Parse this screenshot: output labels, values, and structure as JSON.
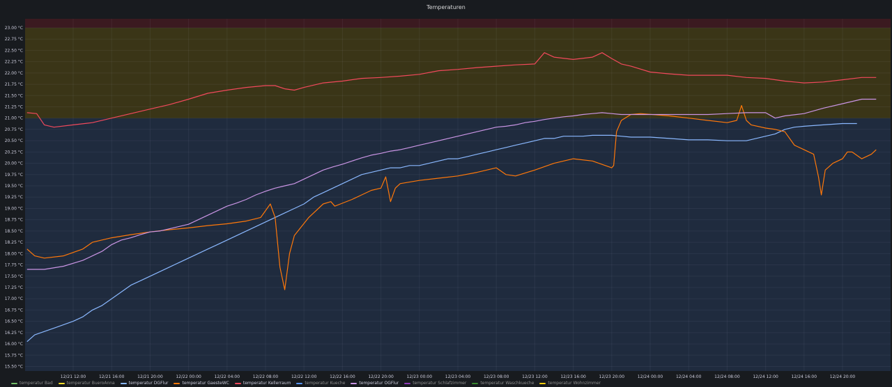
{
  "panel": {
    "title": "Temperaturen"
  },
  "chart_data": {
    "type": "line",
    "title": "Temperaturen",
    "xlabel": "",
    "ylabel": "",
    "ylim": [
      15.4,
      23.2
    ],
    "y_ticks": [
      "23.00 °C",
      "22.75 °C",
      "22.50 °C",
      "22.25 °C",
      "22.00 °C",
      "21.75 °C",
      "21.50 °C",
      "21.25 °C",
      "21.00 °C",
      "20.75 °C",
      "20.50 °C",
      "20.25 °C",
      "20.00 °C",
      "19.75 °C",
      "19.50 °C",
      "19.25 °C",
      "19.00 °C",
      "18.75 °C",
      "18.50 °C",
      "18.25 °C",
      "18.00 °C",
      "17.75 °C",
      "17.50 °C",
      "17.25 °C",
      "17.00 °C",
      "16.75 °C",
      "16.50 °C",
      "16.25 °C",
      "16.00 °C",
      "15.75 °C",
      "15.50 °C"
    ],
    "y_tick_values": [
      23,
      22.75,
      22.5,
      22.25,
      22,
      21.75,
      21.5,
      21.25,
      21,
      20.75,
      20.5,
      20.25,
      20,
      19.75,
      19.5,
      19.25,
      19,
      18.75,
      18.5,
      18.25,
      18,
      17.75,
      17.5,
      17.25,
      17,
      16.75,
      16.5,
      16.25,
      16,
      15.75,
      15.5
    ],
    "x_range_hours": [
      -5,
      85
    ],
    "x_ticks": [
      "12/21 12:00",
      "12/21 16:00",
      "12/21 20:00",
      "12/22 00:00",
      "12/22 04:00",
      "12/22 08:00",
      "12/22 12:00",
      "12/22 16:00",
      "12/22 20:00",
      "12/23 00:00",
      "12/23 04:00",
      "12/23 08:00",
      "12/23 12:00",
      "12/23 16:00",
      "12/23 20:00",
      "12/24 00:00",
      "12/24 04:00",
      "12/24 08:00",
      "12/24 12:00",
      "12/24 16:00",
      "12/24 20:00"
    ],
    "x_tick_hours": [
      0,
      4,
      8,
      12,
      16,
      20,
      24,
      28,
      32,
      36,
      40,
      44,
      48,
      52,
      56,
      60,
      64,
      68,
      72,
      76,
      80
    ],
    "thresholds": [
      {
        "from": 15.4,
        "to": 21.0,
        "color": "#1f2b3e"
      },
      {
        "from": 21.0,
        "to": 23.0,
        "color": "#3a3517"
      },
      {
        "from": 23.0,
        "to": 23.2,
        "color": "#3b1a20"
      }
    ],
    "grid": true,
    "legend_position": "bottom",
    "series": [
      {
        "name": "temperatur Bad",
        "color": "#73bf69",
        "visible": false,
        "points": []
      },
      {
        "name": "temperatur BueroAnna",
        "color": "#fade2a",
        "visible": false,
        "points": []
      },
      {
        "name": "temperatur DGFlur",
        "color": "#8ab8ff",
        "visible": true,
        "points": [
          [
            -4.8,
            16.05
          ],
          [
            -4,
            16.2
          ],
          [
            -2,
            16.35
          ],
          [
            0,
            16.5
          ],
          [
            1,
            16.6
          ],
          [
            2,
            16.75
          ],
          [
            3,
            16.85
          ],
          [
            4,
            17.0
          ],
          [
            5,
            17.15
          ],
          [
            6,
            17.3
          ],
          [
            7,
            17.4
          ],
          [
            8,
            17.5
          ],
          [
            9,
            17.6
          ],
          [
            10,
            17.7
          ],
          [
            11,
            17.8
          ],
          [
            12,
            17.9
          ],
          [
            13,
            18.0
          ],
          [
            14,
            18.1
          ],
          [
            15,
            18.2
          ],
          [
            16,
            18.3
          ],
          [
            17,
            18.4
          ],
          [
            18,
            18.5
          ],
          [
            19,
            18.6
          ],
          [
            20,
            18.7
          ],
          [
            21,
            18.8
          ],
          [
            22,
            18.9
          ],
          [
            23,
            19.0
          ],
          [
            24,
            19.1
          ],
          [
            25,
            19.25
          ],
          [
            26,
            19.35
          ],
          [
            27,
            19.45
          ],
          [
            28,
            19.55
          ],
          [
            29,
            19.65
          ],
          [
            30,
            19.75
          ],
          [
            31,
            19.8
          ],
          [
            32,
            19.85
          ],
          [
            33,
            19.9
          ],
          [
            34,
            19.9
          ],
          [
            35,
            19.95
          ],
          [
            36,
            19.95
          ],
          [
            37,
            20.0
          ],
          [
            38,
            20.05
          ],
          [
            39,
            20.1
          ],
          [
            40,
            20.1
          ],
          [
            41,
            20.15
          ],
          [
            42,
            20.2
          ],
          [
            43,
            20.25
          ],
          [
            44,
            20.3
          ],
          [
            45,
            20.35
          ],
          [
            46,
            20.4
          ],
          [
            47,
            20.45
          ],
          [
            48,
            20.5
          ],
          [
            49,
            20.55
          ],
          [
            50,
            20.55
          ],
          [
            51,
            20.6
          ],
          [
            52,
            20.6
          ],
          [
            53,
            20.6
          ],
          [
            54,
            20.62
          ],
          [
            55,
            20.62
          ],
          [
            56,
            20.62
          ],
          [
            57,
            20.6
          ],
          [
            58,
            20.58
          ],
          [
            60,
            20.58
          ],
          [
            62,
            20.55
          ],
          [
            64,
            20.52
          ],
          [
            66,
            20.52
          ],
          [
            68,
            20.5
          ],
          [
            70,
            20.5
          ],
          [
            71,
            20.55
          ],
          [
            72,
            20.6
          ],
          [
            73,
            20.65
          ],
          [
            74,
            20.75
          ],
          [
            75,
            20.8
          ],
          [
            76,
            20.82
          ],
          [
            78,
            20.85
          ],
          [
            80,
            20.88
          ],
          [
            81.5,
            20.88
          ]
        ]
      },
      {
        "name": "temperatur GaesteWC",
        "color": "#ff780a",
        "visible": true,
        "points": [
          [
            -4.8,
            18.1
          ],
          [
            -4,
            17.95
          ],
          [
            -3,
            17.9
          ],
          [
            -1,
            17.95
          ],
          [
            1,
            18.1
          ],
          [
            2,
            18.25
          ],
          [
            4,
            18.35
          ],
          [
            6,
            18.42
          ],
          [
            8,
            18.48
          ],
          [
            10,
            18.53
          ],
          [
            12,
            18.57
          ],
          [
            14,
            18.62
          ],
          [
            16,
            18.66
          ],
          [
            18,
            18.72
          ],
          [
            19.5,
            18.8
          ],
          [
            20.5,
            19.1
          ],
          [
            21,
            18.8
          ],
          [
            21.5,
            17.7
          ],
          [
            22,
            17.2
          ],
          [
            22.5,
            18.0
          ],
          [
            23,
            18.4
          ],
          [
            24.5,
            18.8
          ],
          [
            26,
            19.1
          ],
          [
            26.8,
            19.15
          ],
          [
            27.2,
            19.05
          ],
          [
            27.8,
            19.1
          ],
          [
            29,
            19.2
          ],
          [
            30,
            19.3
          ],
          [
            31,
            19.4
          ],
          [
            32,
            19.45
          ],
          [
            32.5,
            19.7
          ],
          [
            33,
            19.15
          ],
          [
            33.5,
            19.45
          ],
          [
            34,
            19.55
          ],
          [
            36,
            19.62
          ],
          [
            38,
            19.67
          ],
          [
            40,
            19.72
          ],
          [
            42,
            19.8
          ],
          [
            44,
            19.9
          ],
          [
            45,
            19.75
          ],
          [
            46,
            19.72
          ],
          [
            48,
            19.85
          ],
          [
            50,
            20.0
          ],
          [
            52,
            20.1
          ],
          [
            54,
            20.05
          ],
          [
            56,
            19.9
          ],
          [
            56.2,
            19.95
          ],
          [
            56.5,
            20.7
          ],
          [
            57,
            20.95
          ],
          [
            58,
            21.08
          ],
          [
            59,
            21.1
          ],
          [
            62,
            21.05
          ],
          [
            64,
            21.0
          ],
          [
            66,
            20.95
          ],
          [
            68,
            20.9
          ],
          [
            69,
            20.95
          ],
          [
            69.5,
            21.28
          ],
          [
            70,
            20.95
          ],
          [
            70.5,
            20.85
          ],
          [
            72,
            20.78
          ],
          [
            73,
            20.75
          ],
          [
            74,
            20.7
          ],
          [
            75,
            20.4
          ],
          [
            76,
            20.3
          ],
          [
            77,
            20.2
          ],
          [
            77.5,
            19.7
          ],
          [
            77.8,
            19.3
          ],
          [
            78.2,
            19.85
          ],
          [
            79,
            20.0
          ],
          [
            80,
            20.1
          ],
          [
            80.5,
            20.25
          ],
          [
            81,
            20.25
          ],
          [
            82,
            20.1
          ],
          [
            83,
            20.2
          ],
          [
            83.5,
            20.3
          ]
        ]
      },
      {
        "name": "temperatur Kellerraum",
        "color": "#f2495c",
        "visible": true,
        "points": [
          [
            -4.8,
            21.12
          ],
          [
            -3.8,
            21.1
          ],
          [
            -3,
            20.85
          ],
          [
            -2,
            20.8
          ],
          [
            0,
            20.85
          ],
          [
            2,
            20.9
          ],
          [
            4,
            21.0
          ],
          [
            6,
            21.1
          ],
          [
            8,
            21.2
          ],
          [
            10,
            21.3
          ],
          [
            12,
            21.42
          ],
          [
            14,
            21.55
          ],
          [
            16,
            21.62
          ],
          [
            18,
            21.68
          ],
          [
            20,
            21.72
          ],
          [
            21,
            21.72
          ],
          [
            22,
            21.65
          ],
          [
            23,
            21.62
          ],
          [
            24,
            21.68
          ],
          [
            26,
            21.78
          ],
          [
            28,
            21.82
          ],
          [
            30,
            21.88
          ],
          [
            32,
            21.9
          ],
          [
            34,
            21.93
          ],
          [
            36,
            21.97
          ],
          [
            38,
            22.05
          ],
          [
            40,
            22.08
          ],
          [
            42,
            22.12
          ],
          [
            44,
            22.15
          ],
          [
            46,
            22.18
          ],
          [
            48,
            22.2
          ],
          [
            49,
            22.45
          ],
          [
            50,
            22.35
          ],
          [
            52,
            22.3
          ],
          [
            54,
            22.35
          ],
          [
            55,
            22.45
          ],
          [
            56,
            22.32
          ],
          [
            57,
            22.2
          ],
          [
            58,
            22.15
          ],
          [
            60,
            22.02
          ],
          [
            62,
            21.98
          ],
          [
            64,
            21.95
          ],
          [
            66,
            21.95
          ],
          [
            68,
            21.95
          ],
          [
            70,
            21.9
          ],
          [
            72,
            21.88
          ],
          [
            74,
            21.82
          ],
          [
            76,
            21.78
          ],
          [
            78,
            21.8
          ],
          [
            80,
            21.85
          ],
          [
            82,
            21.9
          ],
          [
            83.5,
            21.9
          ]
        ]
      },
      {
        "name": "temperatur Kueche",
        "color": "#5794f2",
        "visible": false,
        "points": []
      },
      {
        "name": "temperatur OGFlur",
        "color": "#ca95e5",
        "visible": true,
        "points": [
          [
            -4.8,
            17.65
          ],
          [
            -3,
            17.65
          ],
          [
            -1,
            17.72
          ],
          [
            1,
            17.85
          ],
          [
            2,
            17.95
          ],
          [
            3,
            18.05
          ],
          [
            4,
            18.2
          ],
          [
            5,
            18.3
          ],
          [
            6,
            18.35
          ],
          [
            7,
            18.42
          ],
          [
            8,
            18.48
          ],
          [
            9,
            18.5
          ],
          [
            10,
            18.55
          ],
          [
            11,
            18.6
          ],
          [
            12,
            18.65
          ],
          [
            13,
            18.75
          ],
          [
            14,
            18.85
          ],
          [
            15,
            18.95
          ],
          [
            16,
            19.05
          ],
          [
            17,
            19.12
          ],
          [
            18,
            19.2
          ],
          [
            19,
            19.3
          ],
          [
            20,
            19.38
          ],
          [
            21,
            19.45
          ],
          [
            22,
            19.5
          ],
          [
            23,
            19.55
          ],
          [
            24,
            19.65
          ],
          [
            25,
            19.75
          ],
          [
            26,
            19.85
          ],
          [
            27,
            19.92
          ],
          [
            28,
            19.98
          ],
          [
            29,
            20.05
          ],
          [
            30,
            20.12
          ],
          [
            31,
            20.18
          ],
          [
            32,
            20.22
          ],
          [
            33,
            20.27
          ],
          [
            34,
            20.3
          ],
          [
            35,
            20.35
          ],
          [
            36,
            20.4
          ],
          [
            37,
            20.45
          ],
          [
            38,
            20.5
          ],
          [
            39,
            20.55
          ],
          [
            40,
            20.6
          ],
          [
            41,
            20.65
          ],
          [
            42,
            20.7
          ],
          [
            43,
            20.75
          ],
          [
            44,
            20.8
          ],
          [
            45,
            20.82
          ],
          [
            46,
            20.85
          ],
          [
            47,
            20.9
          ],
          [
            48,
            20.93
          ],
          [
            49,
            20.97
          ],
          [
            50,
            21.0
          ],
          [
            51,
            21.03
          ],
          [
            52,
            21.05
          ],
          [
            53,
            21.08
          ],
          [
            54,
            21.1
          ],
          [
            55,
            21.12
          ],
          [
            56,
            21.1
          ],
          [
            57,
            21.08
          ],
          [
            58,
            21.08
          ],
          [
            60,
            21.08
          ],
          [
            62,
            21.08
          ],
          [
            64,
            21.08
          ],
          [
            66,
            21.08
          ],
          [
            68,
            21.1
          ],
          [
            70,
            21.12
          ],
          [
            72,
            21.12
          ],
          [
            73,
            21.0
          ],
          [
            74,
            21.05
          ],
          [
            76,
            21.1
          ],
          [
            78,
            21.22
          ],
          [
            80,
            21.32
          ],
          [
            82,
            21.42
          ],
          [
            83.5,
            21.42
          ]
        ]
      },
      {
        "name": "temperatur Schlafzimmer",
        "color": "#8f3bb8",
        "visible": false,
        "points": []
      },
      {
        "name": "temperatur Waschkueche",
        "color": "#37872d",
        "visible": false,
        "points": []
      },
      {
        "name": "temperatur Wohnzimmer",
        "color": "#f2cc0c",
        "visible": false,
        "points": []
      }
    ]
  }
}
